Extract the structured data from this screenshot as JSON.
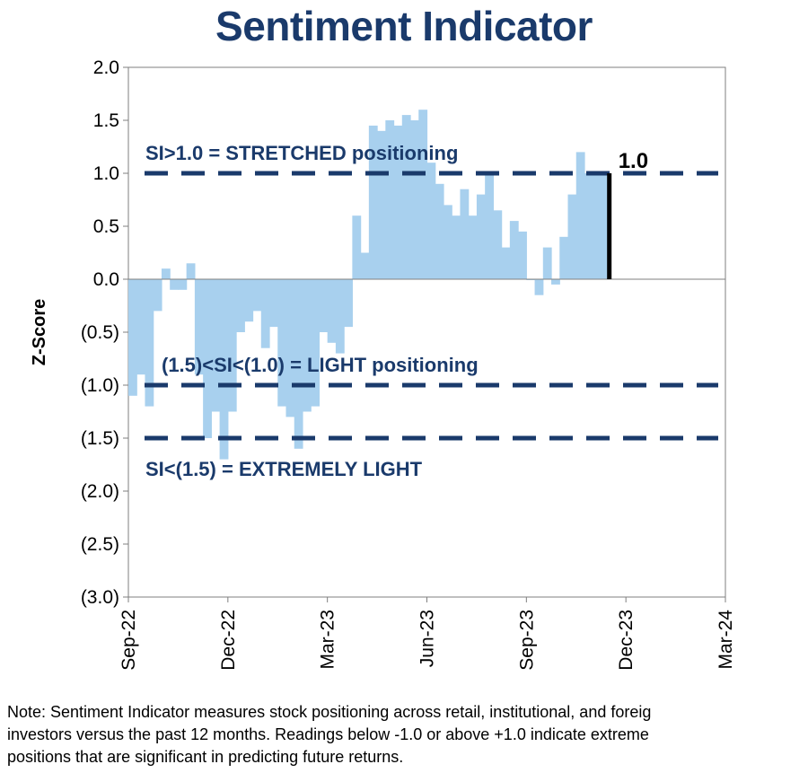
{
  "chart_data": {
    "type": "bar",
    "title": "Sentiment Indicator",
    "ylabel": "Z-Score",
    "xlabel": "",
    "ylim": [
      -3.0,
      2.0
    ],
    "y_ticks": [
      2.0,
      1.5,
      1.0,
      0.5,
      0.0,
      -0.5,
      -1.0,
      -1.5,
      -2.0,
      -2.5,
      -3.0
    ],
    "y_tick_labels": [
      "2.0",
      "1.5",
      "1.0",
      "0.5",
      "0.0",
      "(0.5)",
      "(1.0)",
      "(1.5)",
      "(2.0)",
      "(2.5)",
      "(3.0)"
    ],
    "x_ticks": [
      "Sep-22",
      "Dec-22",
      "Mar-23",
      "Jun-23",
      "Sep-23",
      "Dec-23",
      "Mar-24"
    ],
    "x_range_months": [
      0,
      18
    ],
    "bar_color": "#a8d0ee",
    "line_color": "#1a3a6b",
    "series": [
      {
        "name": "Sentiment Indicator",
        "x_months": [
          0.0,
          0.25,
          0.5,
          0.75,
          1.0,
          1.25,
          1.5,
          1.75,
          2.0,
          2.25,
          2.5,
          2.75,
          3.0,
          3.25,
          3.5,
          3.75,
          4.0,
          4.25,
          4.5,
          4.75,
          5.0,
          5.25,
          5.5,
          5.75,
          6.0,
          6.25,
          6.5,
          6.75,
          7.0,
          7.25,
          7.5,
          7.75,
          8.0,
          8.25,
          8.5,
          8.75,
          9.0,
          9.25,
          9.5,
          9.75,
          10.0,
          10.25,
          10.5,
          10.75,
          11.0,
          11.25,
          11.5,
          11.75,
          12.0,
          12.25,
          12.5,
          12.75,
          13.0,
          13.25,
          13.5,
          13.75,
          14.0,
          14.25
        ],
        "values": [
          -1.1,
          -0.9,
          -1.2,
          -0.3,
          0.1,
          -0.1,
          -0.1,
          0.15,
          -0.9,
          -1.5,
          -1.25,
          -1.7,
          -1.25,
          -0.5,
          -0.4,
          -0.3,
          -0.65,
          -0.45,
          -1.2,
          -1.3,
          -1.6,
          -1.25,
          -1.2,
          -0.5,
          -0.6,
          -0.7,
          -0.45,
          0.6,
          0.25,
          1.45,
          1.4,
          1.5,
          1.45,
          1.55,
          1.5,
          1.6,
          1.1,
          0.9,
          0.7,
          0.6,
          0.85,
          0.6,
          0.8,
          1.0,
          0.65,
          0.3,
          0.55,
          0.45,
          0.0,
          -0.15,
          0.3,
          -0.05,
          0.4,
          0.8,
          1.2,
          1.0,
          1.0,
          1.0
        ]
      }
    ],
    "current_value": 1.0,
    "current_label": "1.0",
    "thresholds": [
      {
        "value": 1.0,
        "label": "SI>1.0 = STRETCHED positioning",
        "label_side": "above"
      },
      {
        "value": -1.0,
        "label": "(1.5)<SI<(1.0) = LIGHT positioning",
        "label_side": "above"
      },
      {
        "value": -1.5,
        "label": "SI<(1.5) = EXTREMELY LIGHT",
        "label_side": "below"
      }
    ]
  },
  "note": {
    "lines": [
      "Note: Sentiment Indicator measures stock positioning across retail, institutional, and foreig",
      "investors versus the past 12 months. Readings below -1.0 or above +1.0 indicate extreme",
      "positions that are significant in predicting future returns."
    ]
  }
}
